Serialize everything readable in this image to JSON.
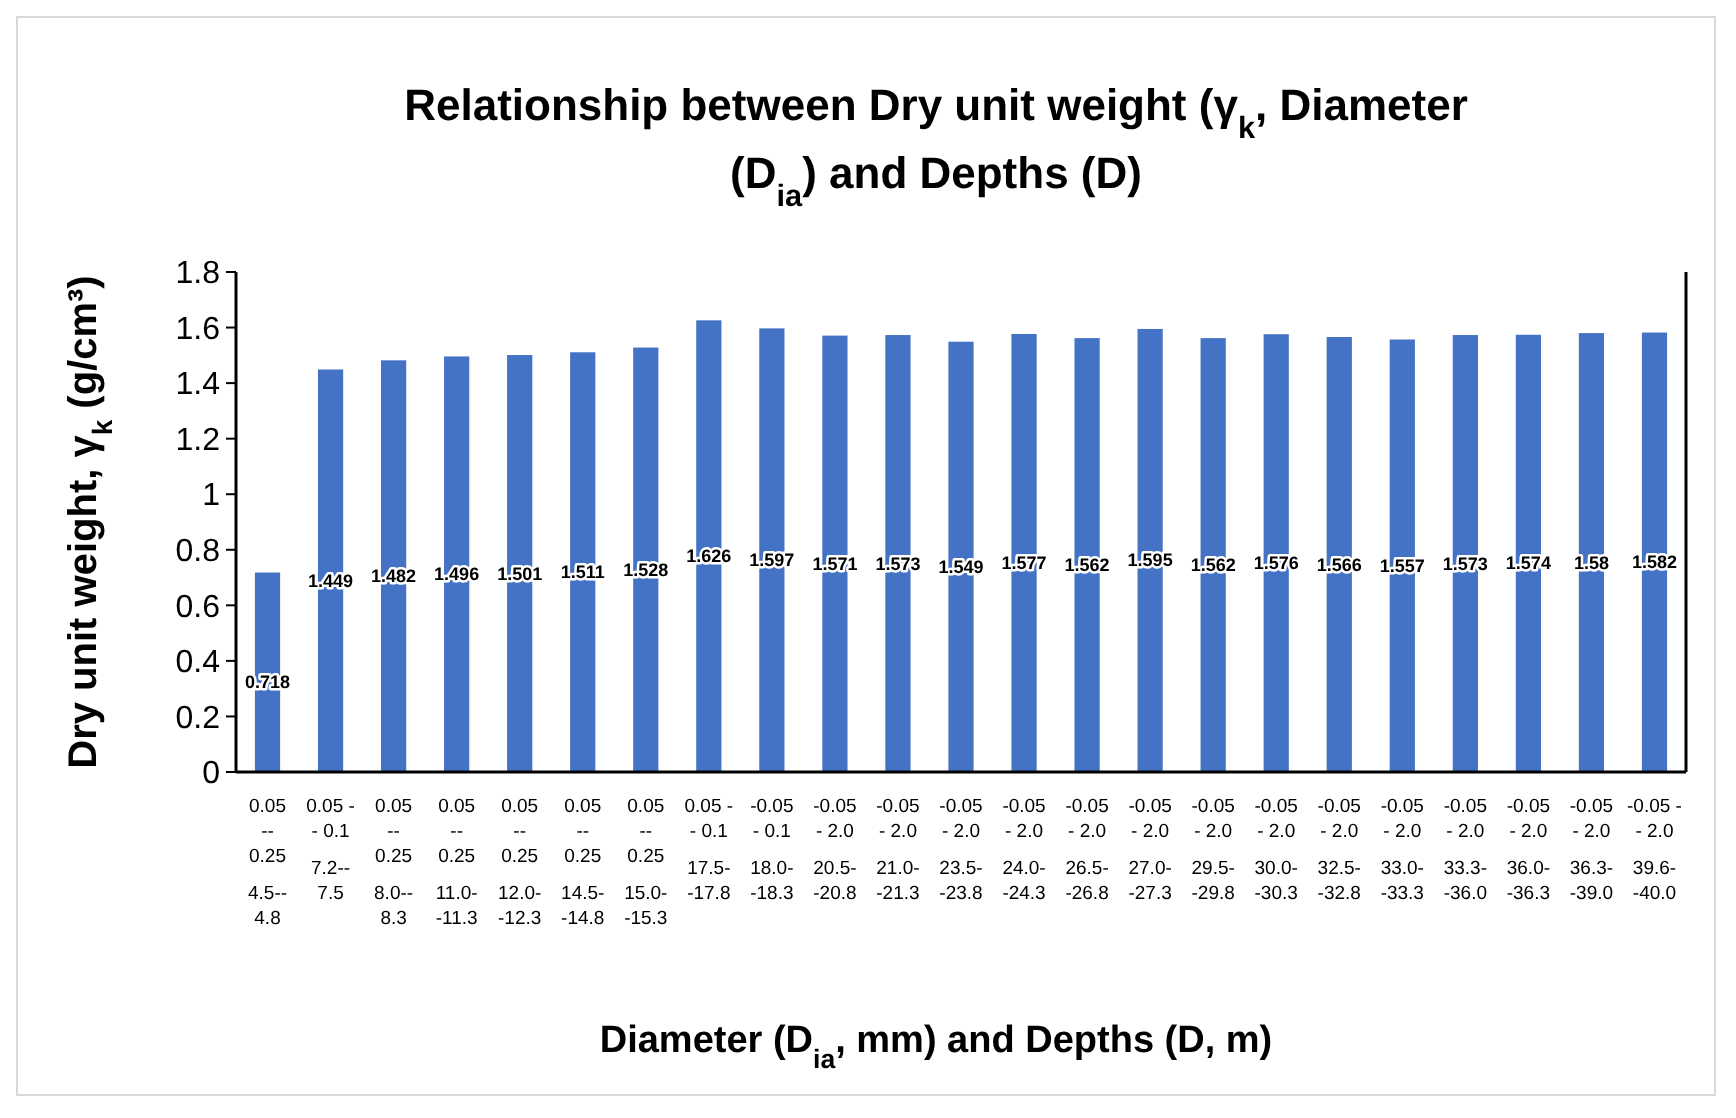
{
  "chart_data": {
    "type": "bar",
    "title": "Relationship between Dry unit weight (γ$_{k}$, Diameter (D$_{ia}$) and Depths (D)",
    "xlabel": "Diameter (D$_{ia}$, mm) and Depths (D, m)",
    "ylabel": "Dry unit weight, γ$_{k}$ (g/cm³)",
    "categories": [
      "0.05\n--\n0.25\n\n4.5--\n4.8",
      "0.05 -\n- 0.1\n\n7.2--\n7.5",
      "0.05\n--\n0.25\n\n8.0--\n8.3",
      "0.05\n--\n0.25\n\n11.0-\n-11.3",
      "0.05\n--\n0.25\n\n12.0-\n-12.3",
      "0.05\n--\n0.25\n\n14.5-\n-14.8",
      "0.05\n--\n0.25\n\n15.0-\n-15.3",
      "0.05 -\n- 0.1\n\n17.5-\n-17.8",
      "-0.05\n- 0.1\n\n18.0-\n-18.3",
      "-0.05\n- 2.0\n\n20.5-\n-20.8",
      "-0.05\n- 2.0\n\n21.0-\n-21.3",
      "-0.05\n- 2.0\n\n23.5-\n-23.8",
      "-0.05\n- 2.0\n\n24.0-\n-24.3",
      "-0.05\n- 2.0\n\n26.5-\n-26.8",
      "-0.05\n- 2.0\n\n27.0-\n-27.3",
      "-0.05\n- 2.0\n\n29.5-\n-29.8",
      "-0.05\n- 2.0\n\n30.0-\n-30.3",
      "-0.05\n- 2.0\n\n32.5-\n-32.8",
      "-0.05\n- 2.0\n\n33.0-\n-33.3",
      "-0.05\n- 2.0\n\n33.3-\n-36.0",
      "-0.05\n- 2.0\n\n36.0-\n-36.3",
      "-0.05\n- 2.0\n\n36.3-\n-39.0",
      "-0.05 -\n- 2.0\n\n39.6-\n-40.0"
    ],
    "values": [
      0.718,
      1.449,
      1.482,
      1.496,
      1.501,
      1.511,
      1.528,
      1.626,
      1.597,
      1.571,
      1.573,
      1.549,
      1.577,
      1.562,
      1.595,
      1.562,
      1.576,
      1.566,
      1.557,
      1.573,
      1.574,
      1.58,
      1.582
    ],
    "color": "#4472c4",
    "ylim": [
      0,
      1.8
    ],
    "yticks": [
      0,
      0.2,
      0.4,
      0.6,
      0.8,
      1,
      1.2,
      1.4,
      1.6,
      1.8
    ],
    "data_labels": true,
    "grid": false
  }
}
